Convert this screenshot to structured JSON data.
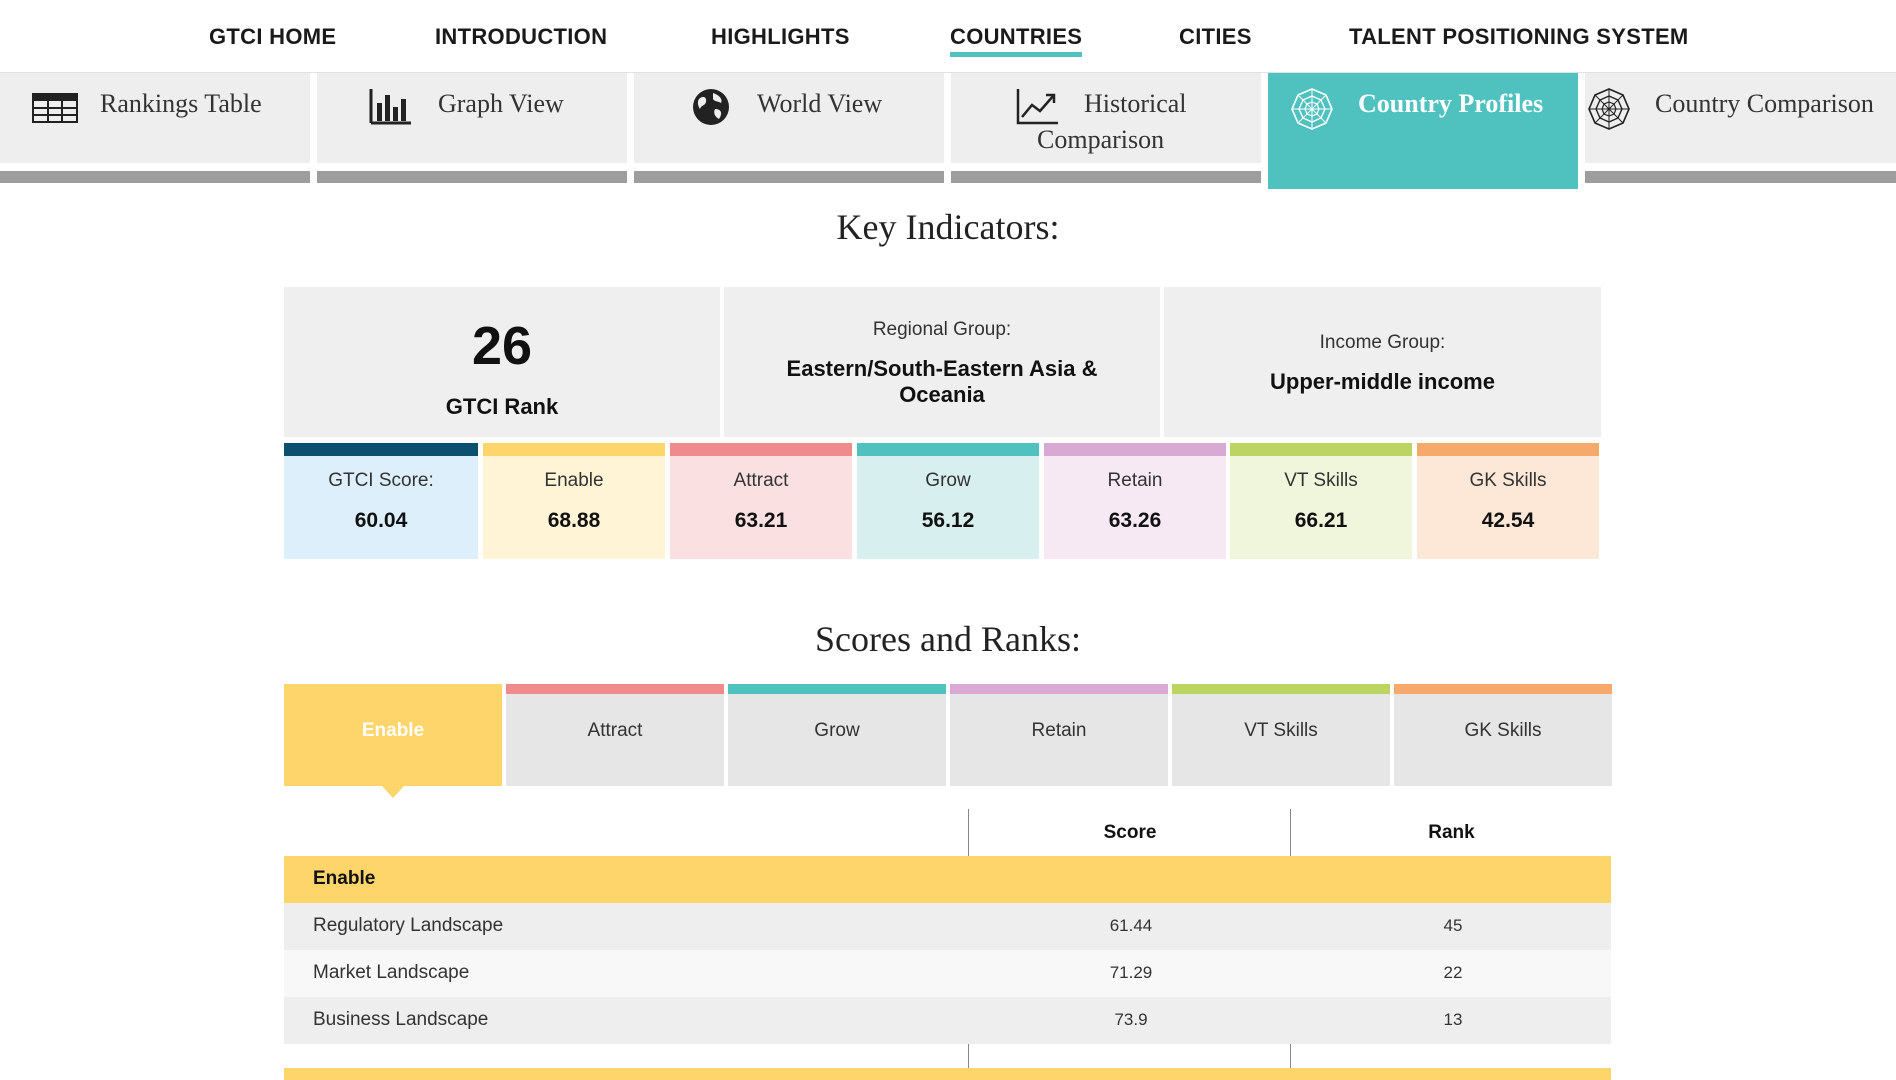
{
  "nav": {
    "items": [
      "GTCI HOME",
      "INTRODUCTION",
      "HIGHLIGHTS",
      "COUNTRIES",
      "CITIES",
      "TALENT POSITIONING SYSTEM"
    ],
    "active": "COUNTRIES"
  },
  "view_tabs": {
    "rankings_table": "Rankings Table",
    "graph_view": "Graph View",
    "world_view": "World View",
    "historical_1": "Historical",
    "historical_2": "Comparison",
    "country_profiles": "Country Profiles",
    "country_comparison": "Country Comparison"
  },
  "key_indicators": {
    "title": "Key Indicators:",
    "rank_value": "26",
    "rank_label": "GTCI Rank",
    "regional_label": "Regional Group:",
    "regional_value_1": "Eastern/South-Eastern Asia &",
    "regional_value_2": "Oceania",
    "income_label": "Income Group:",
    "income_value": "Upper-middle income"
  },
  "scores": [
    {
      "label": "GTCI Score:",
      "value": "60.04",
      "color": "#0c4f6f",
      "bg": "#dceffa"
    },
    {
      "label": "Enable",
      "value": "68.88",
      "color": "#fed56b",
      "bg": "#fff4d6"
    },
    {
      "label": "Attract",
      "value": "63.21",
      "color": "#ef8a8d",
      "bg": "#fbe0e1"
    },
    {
      "label": "Grow",
      "value": "56.12",
      "color": "#4fc1be",
      "bg": "#d7f0ef"
    },
    {
      "label": "Retain",
      "value": "63.26",
      "color": "#d8a9d2",
      "bg": "#f6e9f4"
    },
    {
      "label": "VT Skills",
      "value": "66.21",
      "color": "#bcd462",
      "bg": "#eff6dc"
    },
    {
      "label": "GK Skills",
      "value": "42.54",
      "color": "#f5a96a",
      "bg": "#fde8d8"
    }
  ],
  "scores_and_ranks": {
    "title": "Scores and Ranks:",
    "tabs": [
      {
        "label": "Enable",
        "color": "#fed56b"
      },
      {
        "label": "Attract",
        "color": "#ef8a8d"
      },
      {
        "label": "Grow",
        "color": "#4fc1be"
      },
      {
        "label": "Retain",
        "color": "#d8a9d2"
      },
      {
        "label": "VT Skills",
        "color": "#bcd462"
      },
      {
        "label": "GK Skills",
        "color": "#f5a96a"
      }
    ],
    "active_tab": "Enable"
  },
  "table": {
    "headers": {
      "score": "Score",
      "rank": "Rank"
    },
    "section": "Enable",
    "rows": [
      {
        "name": "Regulatory Landscape",
        "score": "61.44",
        "rank": "45"
      },
      {
        "name": "Market Landscape",
        "score": "71.29",
        "rank": "22"
      },
      {
        "name": "Business Landscape",
        "score": "73.9",
        "rank": "13"
      }
    ]
  },
  "colors": {
    "accent": "#4fc1be",
    "enable_yellow": "#fed56b",
    "tab_bar_grey": "#9d9d9d"
  }
}
